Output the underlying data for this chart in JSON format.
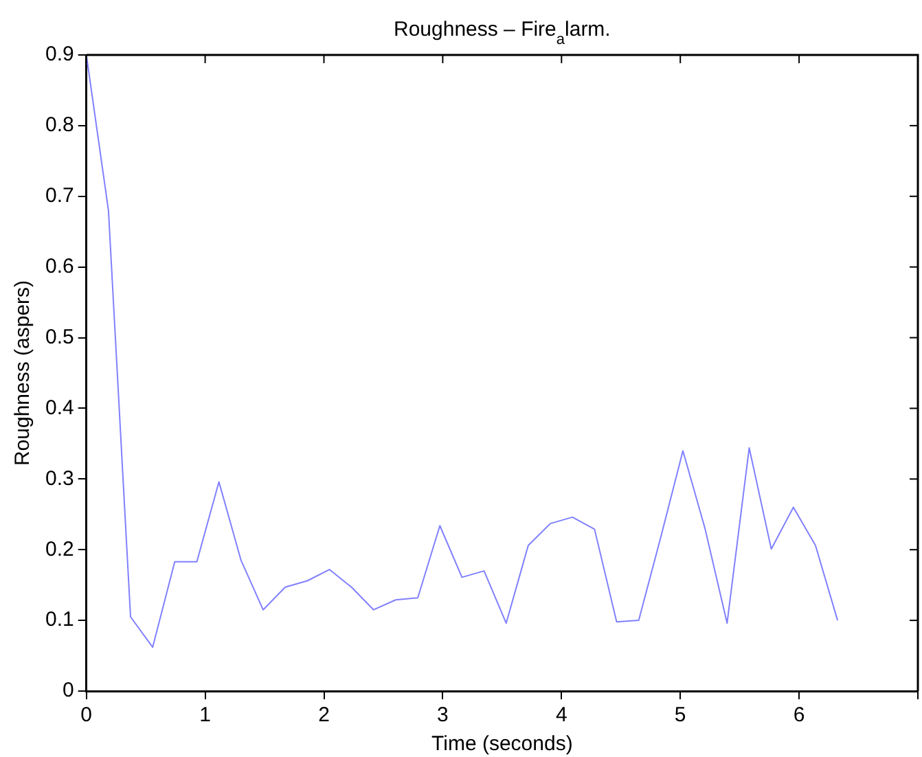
{
  "chart_data": {
    "type": "line",
    "title": "Roughness – Fire$_{a}$larm.",
    "xlabel": "Time (seconds)",
    "ylabel": "Roughness (aspers)",
    "x": [
      0,
      0.186,
      0.372,
      0.558,
      0.744,
      0.93,
      1.116,
      1.302,
      1.488,
      1.674,
      1.86,
      2.046,
      2.232,
      2.418,
      2.604,
      2.79,
      2.976,
      3.162,
      3.348,
      3.534,
      3.72,
      3.906,
      4.092,
      4.278,
      4.464,
      4.65,
      4.836,
      5.022,
      5.208,
      5.394,
      5.58,
      5.766,
      5.952,
      6.138,
      6.324
    ],
    "series": [
      {
        "color": "#8080ff",
        "values": [
          0.9,
          0.68,
          0.105,
          0.062,
          0.183,
          0.183,
          0.296,
          0.185,
          0.115,
          0.147,
          0.156,
          0.172,
          0.147,
          0.115,
          0.129,
          0.132,
          0.234,
          0.161,
          0.17,
          0.096,
          0.206,
          0.237,
          0.246,
          0.229,
          0.098,
          0.1,
          0.218,
          0.34,
          0.23,
          0.096,
          0.344,
          0.201,
          0.26,
          0.206,
          0.1
        ]
      }
    ],
    "xlim": [
      0,
      7
    ],
    "xticks": [
      0,
      1,
      2,
      3,
      4,
      5,
      6,
      {
        "value": 7,
        "label": null
      }
    ],
    "ylim": [
      0,
      0.9
    ],
    "yticks": [
      0,
      0.1,
      0.2,
      0.3,
      0.4,
      0.5,
      0.6,
      0.7,
      0.8,
      0.9
    ],
    "grid": false,
    "legend": false,
    "marker": "none",
    "line_style": "solid"
  }
}
